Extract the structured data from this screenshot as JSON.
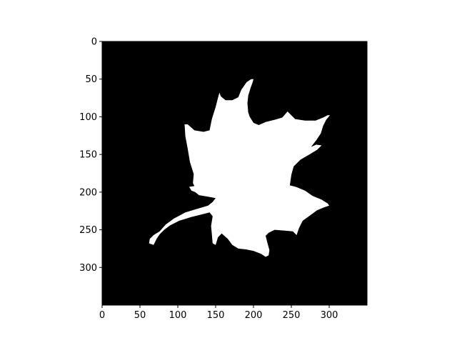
{
  "chart_data": {
    "type": "image",
    "colormap": "gray",
    "background_color": "#000000",
    "foreground_color": "#ffffff",
    "image_shape": [
      350,
      350
    ],
    "xlim": [
      0,
      350
    ],
    "ylim": [
      350,
      0
    ],
    "x_ticks": [
      0,
      50,
      100,
      150,
      200,
      250,
      300
    ],
    "y_ticks": [
      0,
      50,
      100,
      150,
      200,
      250,
      300
    ],
    "grid": false,
    "title": "",
    "xlabel": "",
    "ylabel": "",
    "leaf_outline": [
      [
        200,
        50
      ],
      [
        199,
        54
      ],
      [
        196,
        62
      ],
      [
        193,
        72
      ],
      [
        192,
        82
      ],
      [
        193,
        94
      ],
      [
        195,
        100
      ],
      [
        200,
        108
      ],
      [
        207,
        111
      ],
      [
        216,
        107
      ],
      [
        228,
        104
      ],
      [
        238,
        101
      ],
      [
        245,
        93
      ],
      [
        249,
        97
      ],
      [
        255,
        103
      ],
      [
        268,
        105
      ],
      [
        282,
        105
      ],
      [
        292,
        101
      ],
      [
        298,
        98
      ],
      [
        301,
        98
      ],
      [
        296,
        104
      ],
      [
        292,
        112
      ],
      [
        289,
        122
      ],
      [
        283,
        131
      ],
      [
        276,
        140
      ],
      [
        283,
        137
      ],
      [
        290,
        138
      ],
      [
        284,
        144
      ],
      [
        274,
        150
      ],
      [
        262,
        157
      ],
      [
        253,
        166
      ],
      [
        250,
        177
      ],
      [
        248,
        191
      ],
      [
        256,
        193
      ],
      [
        268,
        198
      ],
      [
        278,
        205
      ],
      [
        290,
        210
      ],
      [
        298,
        215
      ],
      [
        300,
        218
      ],
      [
        294,
        220
      ],
      [
        284,
        224
      ],
      [
        272,
        233
      ],
      [
        265,
        238
      ],
      [
        260,
        248
      ],
      [
        257,
        257
      ],
      [
        252,
        252
      ],
      [
        240,
        251
      ],
      [
        228,
        250
      ],
      [
        220,
        254
      ],
      [
        216,
        258
      ],
      [
        218,
        266
      ],
      [
        221,
        277
      ],
      [
        220,
        284
      ],
      [
        216,
        286
      ],
      [
        210,
        282
      ],
      [
        200,
        278
      ],
      [
        190,
        276
      ],
      [
        180,
        275
      ],
      [
        172,
        270
      ],
      [
        166,
        262
      ],
      [
        158,
        255
      ],
      [
        153,
        260
      ],
      [
        150,
        270
      ],
      [
        146,
        268
      ],
      [
        145,
        256
      ],
      [
        144,
        245
      ],
      [
        146,
        232
      ],
      [
        142,
        227
      ],
      [
        130,
        230
      ],
      [
        118,
        233
      ],
      [
        102,
        238
      ],
      [
        90,
        244
      ],
      [
        82,
        250
      ],
      [
        76,
        256
      ],
      [
        72,
        262
      ],
      [
        68,
        270
      ],
      [
        62,
        268
      ],
      [
        63,
        262
      ],
      [
        68,
        257
      ],
      [
        76,
        252
      ],
      [
        84,
        243
      ],
      [
        95,
        235
      ],
      [
        110,
        227
      ],
      [
        126,
        222
      ],
      [
        140,
        218
      ],
      [
        146,
        213
      ],
      [
        150,
        208
      ],
      [
        140,
        206
      ],
      [
        128,
        204
      ],
      [
        123,
        200
      ],
      [
        118,
        198
      ],
      [
        115,
        193
      ],
      [
        122,
        192
      ],
      [
        120,
        188
      ],
      [
        121,
        176
      ],
      [
        116,
        160
      ],
      [
        113,
        142
      ],
      [
        110,
        126
      ],
      [
        109,
        110
      ],
      [
        113,
        110
      ],
      [
        122,
        118
      ],
      [
        134,
        120
      ],
      [
        142,
        118
      ],
      [
        145,
        103
      ],
      [
        150,
        87
      ],
      [
        153,
        75
      ],
      [
        155,
        68
      ],
      [
        157,
        73
      ],
      [
        163,
        78
      ],
      [
        172,
        78
      ],
      [
        180,
        74
      ],
      [
        184,
        64
      ],
      [
        191,
        54
      ],
      [
        197,
        50
      ]
    ]
  }
}
